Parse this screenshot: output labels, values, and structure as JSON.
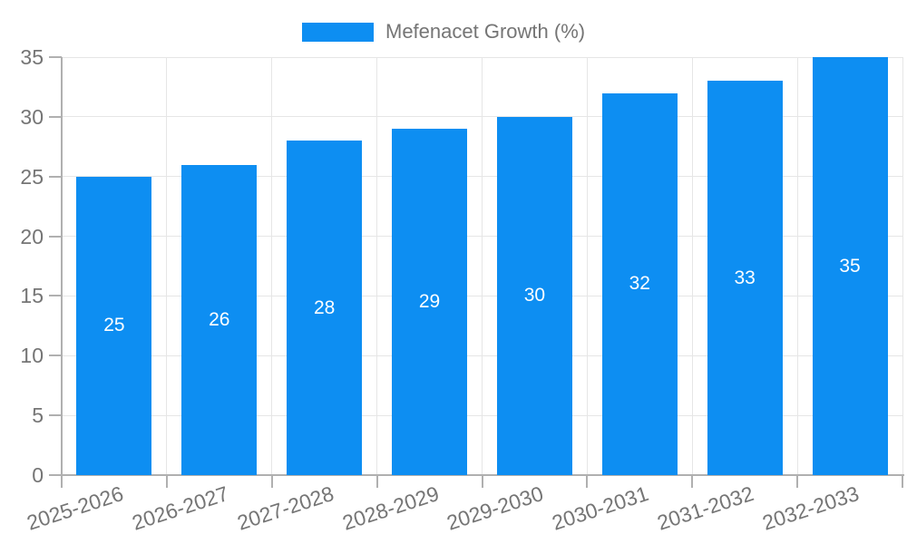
{
  "chart_data": {
    "type": "bar",
    "title": "",
    "categories": [
      "2025-2026",
      "2026-2027",
      "2027-2028",
      "2028-2029",
      "2029-2030",
      "2030-2031",
      "2031-2032",
      "2032-2033"
    ],
    "series": [
      {
        "name": "Mefenacet Growth (%)",
        "values": [
          25,
          26,
          28,
          29,
          30,
          32,
          33,
          35
        ]
      }
    ],
    "value_labels": [
      "25",
      "26",
      "28",
      "29",
      "30",
      "32",
      "33",
      "35"
    ],
    "xlabel": "",
    "ylabel": "",
    "ylim": [
      0,
      35
    ],
    "yticks": [
      0,
      5,
      10,
      15,
      20,
      25,
      30,
      35
    ],
    "grid": true,
    "legend_position": "top-center",
    "value_label_position": "inside-center"
  },
  "colors": {
    "bar": "#0d8ef2",
    "axis_text": "#757575",
    "value_text": "#ffffff",
    "grid_line": "#e6e6e6",
    "axis_line": "#b0b0b0",
    "background": "#ffffff"
  }
}
